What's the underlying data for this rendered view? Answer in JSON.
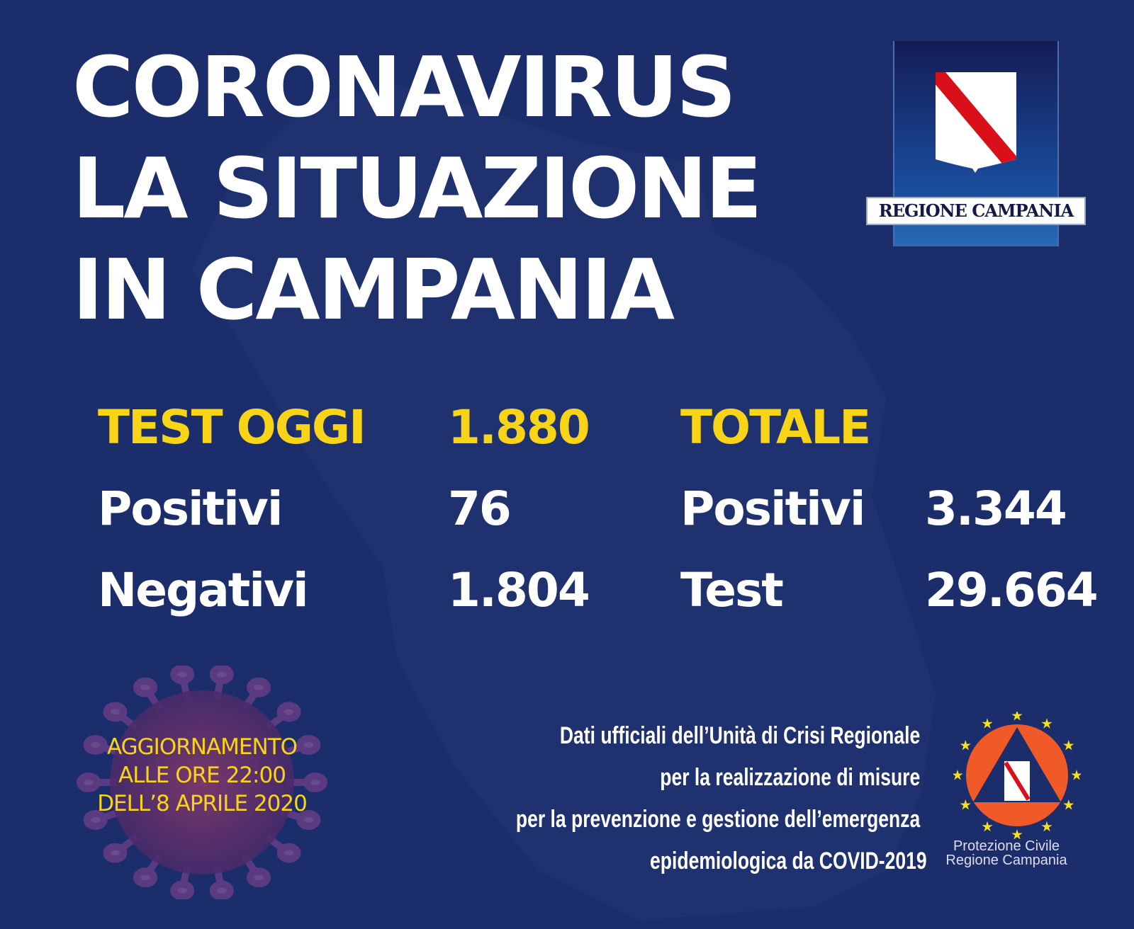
{
  "header": {
    "title_lines": [
      "CORONAVIRUS",
      "LA SITUAZIONE",
      "IN CAMPANIA"
    ]
  },
  "logo": {
    "text": "REGIONE CAMPANIA",
    "icon": "campania-coat-of-arms"
  },
  "today": {
    "label": "TEST OGGI",
    "value": "1.880",
    "rows": [
      {
        "label": "Positivi",
        "value": "76"
      },
      {
        "label": "Negativi",
        "value": "1.804"
      }
    ]
  },
  "total": {
    "label": "TOTALE",
    "rows": [
      {
        "label": "Positivi",
        "value": "3.344"
      },
      {
        "label": "Test",
        "value": "29.664"
      }
    ]
  },
  "update": {
    "lines": [
      "AGGIORNAMENTO",
      "ALLE ORE 22:00",
      "DELL’8 APRILE 2020"
    ],
    "icon": "coronavirus-icon"
  },
  "official": {
    "lines": [
      "Dati ufficiali dell’Unità di Crisi Regionale",
      "per la realizzazione di misure",
      "per la prevenzione e gestione dell’emergenza",
      "epidemiologica da COVID-2019"
    ]
  },
  "protezione": {
    "lines": [
      "Protezione Civile",
      "Regione Campania"
    ],
    "icon": "protezione-civile-logo"
  },
  "colors": {
    "background": "#1c2d6c",
    "accent": "#f7d417",
    "shield_stripe": "#d9101a",
    "pc_orange": "#f05a28"
  }
}
